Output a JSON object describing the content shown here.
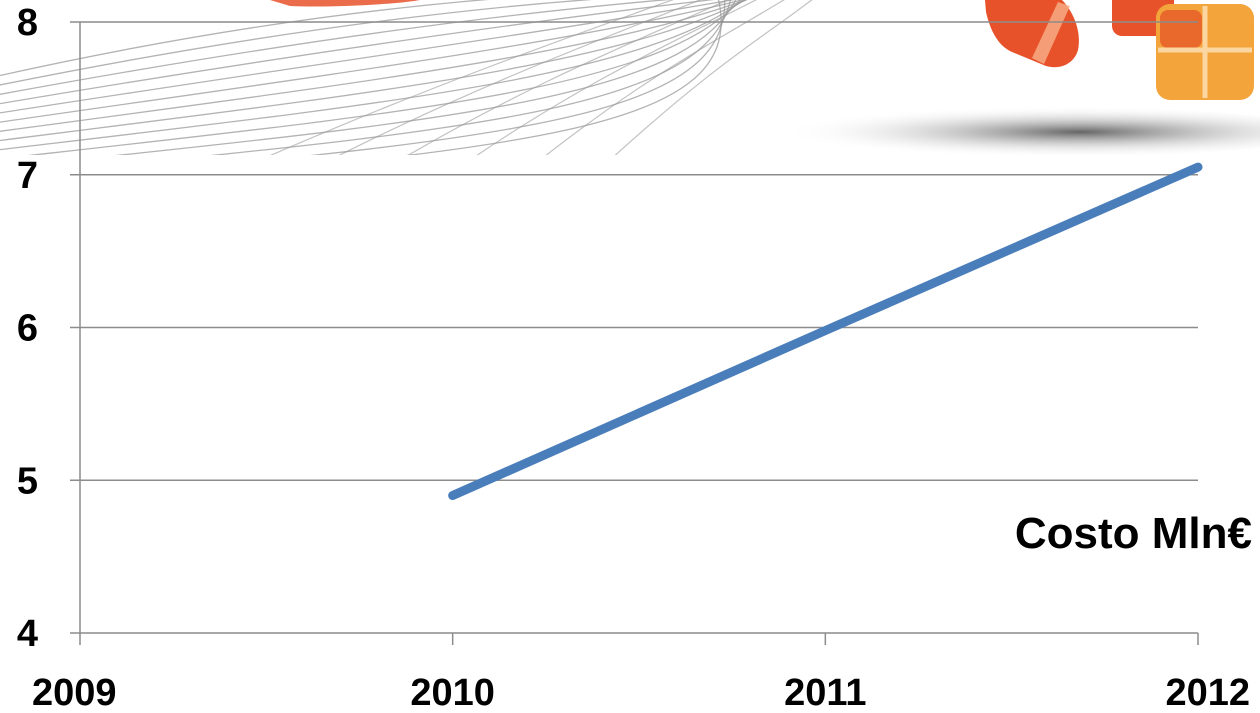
{
  "colors": {
    "series": "#4a7ebb",
    "gridline": "#8c8c8c",
    "axis": "#8c8c8c",
    "decor_orange": "#e8522a",
    "decor_amber": "#f3a43a",
    "decor_swirl": "#9a9a9a"
  },
  "decor": {
    "swirl_icon": "swirl-lines-icon",
    "tiles_icon": "orange-tiles-logo-icon"
  },
  "chart_data": {
    "type": "line",
    "title": "",
    "xlabel": "",
    "ylabel": "",
    "x_ticks": [
      "2009",
      "2010",
      "2011",
      "2012"
    ],
    "y_ticks": [
      "4",
      "5",
      "6",
      "7",
      "8"
    ],
    "xlim": [
      2009,
      2012
    ],
    "ylim": [
      4,
      8
    ],
    "grid": true,
    "legend": "none",
    "series": [
      {
        "name": "Costo Mln€",
        "x": [
          2010,
          2011,
          2012
        ],
        "y": [
          4.9,
          5.98,
          7.05
        ]
      }
    ]
  }
}
